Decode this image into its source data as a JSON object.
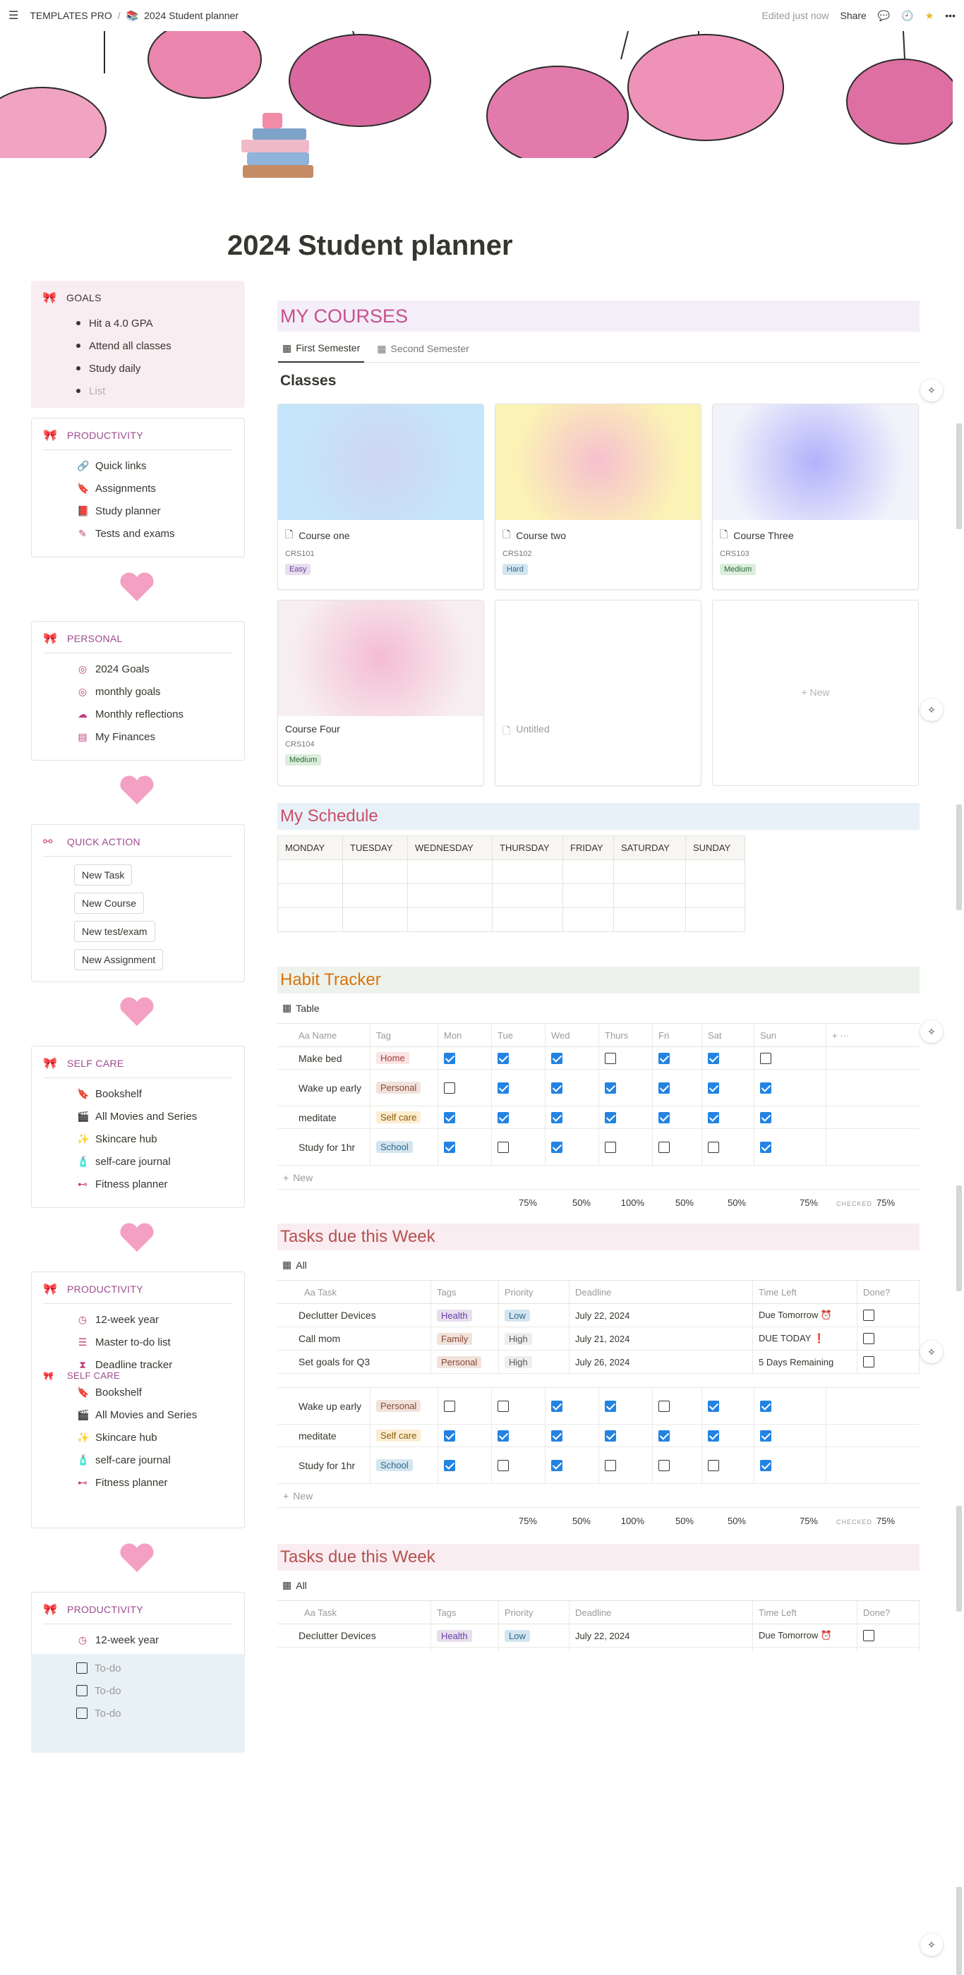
{
  "topbar": {
    "workspace": "TEMPLATES PRO",
    "separator": "/",
    "page": "2024 Student planner",
    "edited": "Edited just now",
    "share": "Share"
  },
  "title": "2024 Student planner",
  "goals": {
    "title": "GOALS",
    "items": [
      "Hit a 4.0 GPA",
      "Attend all classes",
      "Study daily"
    ],
    "placeholder": "List"
  },
  "productivity": {
    "title": "PRODUCTIVITY",
    "items": [
      "Quick links",
      "Assignments",
      "Study planner",
      "Tests and exams"
    ]
  },
  "personal": {
    "title": "PERSONAL",
    "items": [
      "2024 Goals",
      "monthly goals",
      "Monthly reflections",
      "My Finances"
    ]
  },
  "quick_action": {
    "title": "QUICK ACTION",
    "buttons": [
      "New Task",
      "New Course",
      "New test/exam",
      "New Assignment"
    ]
  },
  "selfcare": {
    "title": "SELF CARE",
    "items": [
      "Bookshelf",
      "All Movies and Series",
      "Skincare hub",
      "self-care journal",
      "Fitness planner"
    ]
  },
  "productivity2": {
    "title": "PRODUCTIVITY",
    "items": [
      "12-week year",
      "Master to-do list",
      "Deadline tracker"
    ]
  },
  "productivity3": {
    "title": "PRODUCTIVITY",
    "item": "12-week year",
    "todo": "To-do"
  },
  "courses": {
    "title": "MY COURSES",
    "tabs": [
      "First Semester",
      "Second Semester"
    ],
    "heading": "Classes",
    "cards": [
      {
        "name": "Course one",
        "code": "CRS101",
        "tag": "Easy"
      },
      {
        "name": "Course two",
        "code": "CRS102",
        "tag": "Hard"
      },
      {
        "name": "Course Three",
        "code": "CRS103",
        "tag": "Medium"
      },
      {
        "name": "Course Four",
        "code": "CRS104",
        "tag": "Medium"
      }
    ],
    "untitled": "Untitled",
    "new": "+ New"
  },
  "schedule": {
    "title": "My Schedule",
    "days": [
      "MONDAY",
      "TUESDAY",
      "WEDNESDAY",
      "THURSDAY",
      "FRIDAY",
      "SATURDAY",
      "SUNDAY"
    ]
  },
  "habit": {
    "title": "Habit Tracker",
    "view": "Table",
    "cols": [
      "Aa Name",
      "Tag",
      "Mon",
      "Tue",
      "Wed",
      "Thurs",
      "Fri",
      "Sat",
      "Sun"
    ],
    "rows": [
      {
        "name": "Make bed",
        "tag": "Home",
        "checks": [
          1,
          1,
          1,
          0,
          1,
          1,
          0
        ]
      },
      {
        "name": "Wake up early",
        "tag": "Personal",
        "checks": [
          0,
          1,
          1,
          1,
          1,
          1,
          1
        ]
      },
      {
        "name": "meditate",
        "tag": "Self care",
        "checks": [
          1,
          1,
          1,
          1,
          1,
          1,
          1
        ]
      },
      {
        "name": "Study for 1hr",
        "tag": "School",
        "checks": [
          1,
          0,
          1,
          0,
          0,
          0,
          1
        ]
      }
    ],
    "new": "New",
    "footer": [
      "75%",
      "50%",
      "100%",
      "50%",
      "50%",
      "75%"
    ],
    "checked_label": "CHECKED",
    "checked_val": "75%",
    "partial_rows": [
      {
        "name": "Wake up early",
        "tag": "Personal",
        "checks": [
          0,
          0,
          1,
          1,
          0,
          1,
          1
        ]
      },
      {
        "name": "meditate",
        "tag": "Self care",
        "checks": [
          1,
          1,
          1,
          1,
          1,
          1,
          1
        ]
      },
      {
        "name": "Study for 1hr",
        "tag": "School",
        "checks": [
          1,
          0,
          1,
          0,
          0,
          0,
          1
        ]
      }
    ]
  },
  "tasks": {
    "title": "Tasks due this Week",
    "view": "All",
    "cols": [
      "Aa Task",
      "Tags",
      "Priority",
      "Deadline",
      "Time Left",
      "Done?"
    ],
    "rows": [
      {
        "task": "Declutter Devices",
        "tag": "Health",
        "priority": "Low",
        "deadline": "July 22, 2024",
        "left": "Due Tomorrow ⏰"
      },
      {
        "task": "Call mom",
        "tag": "Family",
        "priority": "High",
        "deadline": "July 21, 2024",
        "left": "DUE TODAY ❗"
      },
      {
        "task": "Set goals for Q3",
        "tag": "Personal",
        "priority": "High",
        "deadline": "July 26, 2024",
        "left": "5 Days Remaining"
      }
    ]
  },
  "colors": {
    "accent": "#d5427b",
    "sect_pink": "#f9edf1",
    "sect_blue": "#e8f1f6",
    "sect_green": "#edf3ec",
    "checkbox": "#2383e2"
  }
}
